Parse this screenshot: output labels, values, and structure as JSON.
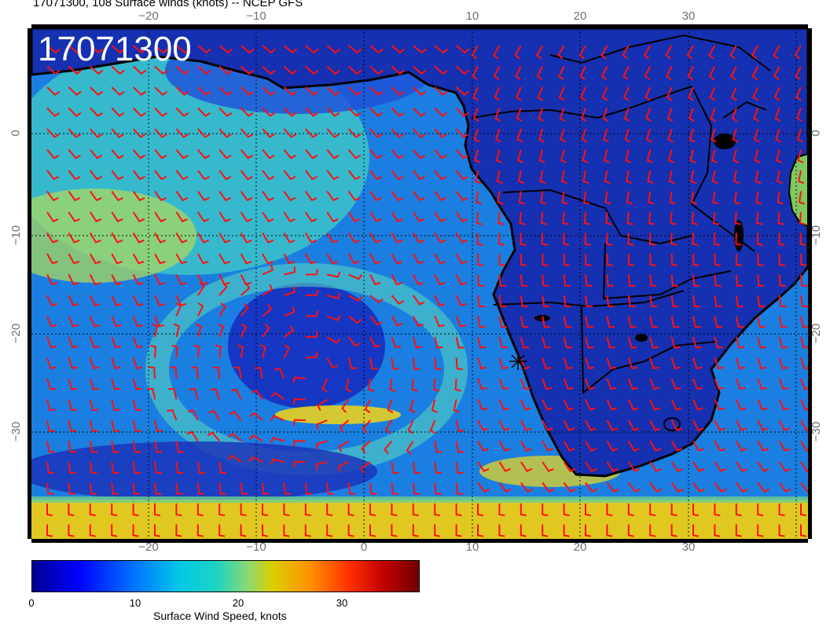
{
  "figure": {
    "title": "17071300, 108 Surface winds (knots) -- NCEP GFS",
    "stamp": "17071300"
  },
  "axes": {
    "lon_ticks": [
      "−20",
      "−10",
      "0",
      "10",
      "20",
      "30"
    ],
    "lat_ticks": [
      "0",
      "−10",
      "−20",
      "−30"
    ]
  },
  "colorbar": {
    "label": "Surface Wind Speed, knots",
    "ticks": [
      "0",
      "10",
      "20",
      "30"
    ],
    "range": [
      0,
      37
    ]
  },
  "map_meta": {
    "projection": "equirectangular",
    "lon_range": [
      -30,
      41
    ],
    "lat_range": [
      9,
      -41
    ],
    "variable": "surface wind speed",
    "barb_color": "#ff0000",
    "coast_color": "#000000"
  }
}
